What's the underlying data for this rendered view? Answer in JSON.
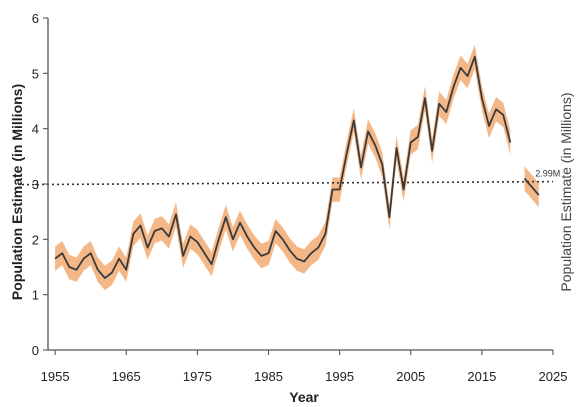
{
  "chart_data": {
    "type": "line",
    "title": "",
    "xlabel": "Year",
    "ylabel": "Population Estimate (in Millions)",
    "ylabel_right": "Population Estimate (in Millions)",
    "xlim": [
      1954,
      2025
    ],
    "ylim": [
      0,
      6
    ],
    "x_ticks": [
      "1955",
      "1965",
      "1975",
      "1985",
      "1995",
      "2005",
      "2015",
      "2025"
    ],
    "y_ticks": [
      "0",
      "1",
      "2",
      "3",
      "4",
      "5",
      "6"
    ],
    "grid": false,
    "legend": "none",
    "colors": {
      "line": "#3a3a3a",
      "band": "#f0a060",
      "reference": "#333333"
    },
    "series": [
      {
        "x": [
          1955,
          1956,
          1957,
          1958,
          1959,
          1960,
          1961,
          1962,
          1963,
          1964,
          1965,
          1966,
          1967,
          1968,
          1969,
          1970,
          1971,
          1972,
          1973,
          1974,
          1975,
          1976,
          1977,
          1978,
          1979,
          1980,
          1981,
          1982,
          1983,
          1984,
          1985,
          1986,
          1987,
          1988,
          1989,
          1990,
          1991,
          1992,
          1993,
          1994,
          1995,
          1996,
          1997,
          1998,
          1999,
          2000,
          2001,
          2002,
          2003,
          2004,
          2005,
          2006,
          2007,
          2008,
          2009,
          2010,
          2011,
          2012,
          2013,
          2014,
          2015,
          2016,
          2017,
          2018,
          2019
        ],
        "y": [
          1.65,
          1.75,
          1.5,
          1.45,
          1.65,
          1.75,
          1.45,
          1.3,
          1.4,
          1.65,
          1.45,
          2.1,
          2.25,
          1.85,
          2.15,
          2.2,
          2.05,
          2.45,
          1.7,
          2.05,
          1.95,
          1.75,
          1.55,
          2.0,
          2.4,
          2.0,
          2.3,
          2.05,
          1.85,
          1.7,
          1.75,
          2.15,
          2.0,
          1.8,
          1.65,
          1.6,
          1.75,
          1.85,
          2.1,
          2.9,
          2.9,
          3.55,
          4.15,
          3.3,
          3.95,
          3.7,
          3.35,
          2.4,
          3.65,
          2.9,
          3.75,
          3.85,
          4.55,
          3.6,
          4.45,
          4.3,
          4.75,
          5.1,
          4.95,
          5.3,
          4.55,
          4.05,
          4.35,
          4.25,
          3.75
        ],
        "band": 0.22
      },
      {
        "x": [
          2021,
          2022,
          2023
        ],
        "y": [
          3.1,
          2.95,
          2.8
        ],
        "band": 0.22
      }
    ],
    "reference_line": {
      "y": 2.99,
      "label": "2.99M"
    }
  }
}
